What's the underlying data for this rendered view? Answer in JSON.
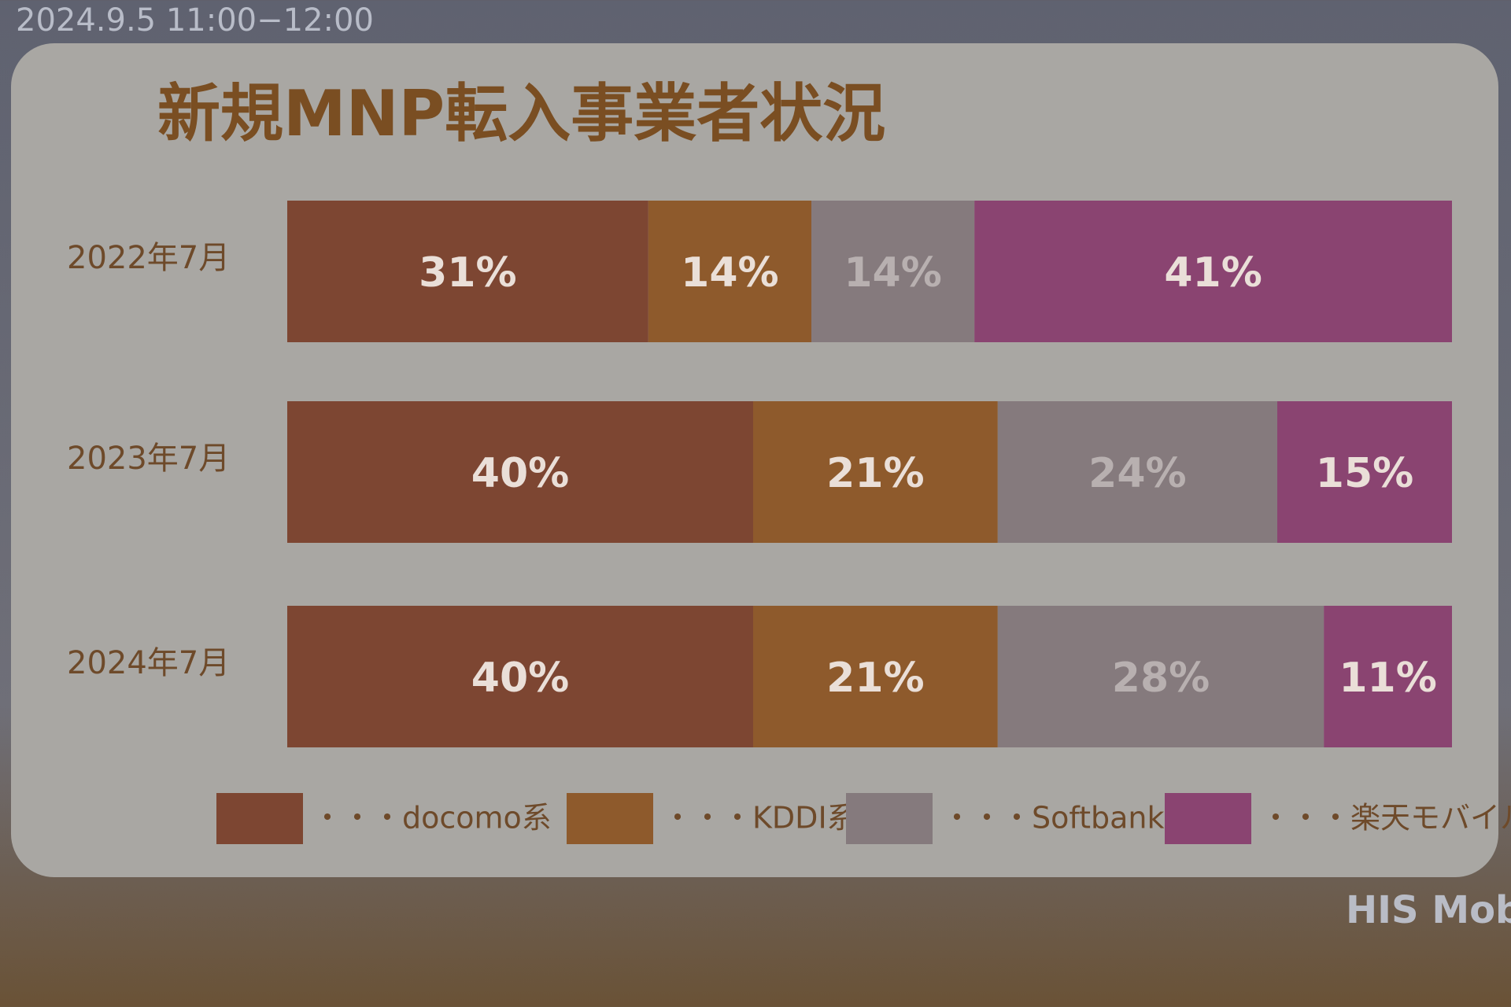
{
  "timestamp": "2024.9.5 11:00−12:00",
  "logo": "HIS Mobi",
  "chart_data": {
    "type": "bar",
    "orientation": "horizontal",
    "stacked": true,
    "title": "新規MNP転入事業者状況",
    "categories": [
      "2022年7月",
      "2023年7月",
      "2024年7月"
    ],
    "series": [
      {
        "name": "・・・docomo系",
        "color": "#7d4632",
        "values": [
          31,
          40,
          40
        ],
        "value_labels": [
          "31%",
          "40%",
          "40%"
        ]
      },
      {
        "name": "・・・KDDI系",
        "color": "#8e5a2c",
        "values": [
          14,
          21,
          21
        ],
        "value_labels": [
          "14%",
          "21%",
          "21%"
        ]
      },
      {
        "name": "・・・Softbank系",
        "color": "#857a7d",
        "values": [
          14,
          24,
          28
        ],
        "value_labels": [
          "14%",
          "24%",
          "28%"
        ]
      },
      {
        "name": "・・・楽天モバイル",
        "color": "#8a4471",
        "values": [
          41,
          15,
          11
        ],
        "value_labels": [
          "41%",
          "15%",
          "11%"
        ]
      }
    ],
    "legend": "bottom"
  }
}
